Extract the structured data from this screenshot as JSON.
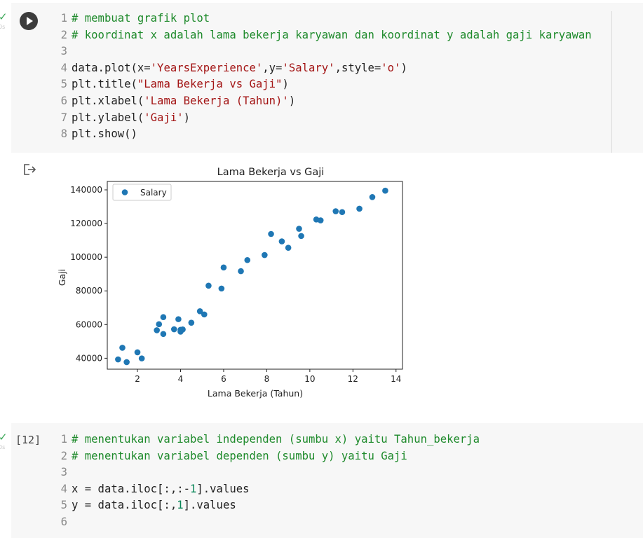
{
  "cells": [
    {
      "status": "✓",
      "time": "0s",
      "lines": [
        {
          "num": "1",
          "tokens": [
            {
              "t": "cm",
              "v": "# membuat grafik plot"
            }
          ]
        },
        {
          "num": "2",
          "tokens": [
            {
              "t": "cm",
              "v": "# koordinat x adalah lama bekerja karyawan dan koordinat y adalah gaji karyawan"
            }
          ]
        },
        {
          "num": "3",
          "tokens": []
        },
        {
          "num": "4",
          "tokens": [
            {
              "t": "pl",
              "v": "data.plot(x="
            },
            {
              "t": "st",
              "v": "'YearsExperience'"
            },
            {
              "t": "pl",
              "v": ",y="
            },
            {
              "t": "st",
              "v": "'Salary'"
            },
            {
              "t": "pl",
              "v": ",style="
            },
            {
              "t": "st",
              "v": "'o'"
            },
            {
              "t": "pl",
              "v": ")"
            }
          ]
        },
        {
          "num": "5",
          "tokens": [
            {
              "t": "pl",
              "v": "plt.title("
            },
            {
              "t": "st",
              "v": "\"Lama Bekerja vs Gaji\""
            },
            {
              "t": "pl",
              "v": ")"
            }
          ]
        },
        {
          "num": "6",
          "tokens": [
            {
              "t": "pl",
              "v": "plt.xlabel("
            },
            {
              "t": "st",
              "v": "'Lama Bekerja (Tahun)'"
            },
            {
              "t": "pl",
              "v": ")"
            }
          ]
        },
        {
          "num": "7",
          "tokens": [
            {
              "t": "pl",
              "v": "plt.ylabel("
            },
            {
              "t": "st",
              "v": "'Gaji'"
            },
            {
              "t": "pl",
              "v": ")"
            }
          ]
        },
        {
          "num": "8",
          "tokens": [
            {
              "t": "pl",
              "v": "plt.show()"
            }
          ]
        }
      ]
    },
    {
      "status": "✓",
      "time": "0s",
      "exec_count": "[12]",
      "lines": [
        {
          "num": "1",
          "tokens": [
            {
              "t": "cm",
              "v": "# menentukan variabel independen (sumbu x) yaitu Tahun_bekerja"
            }
          ]
        },
        {
          "num": "2",
          "tokens": [
            {
              "t": "cm",
              "v": "# menentukan variabel dependen (sumbu y) yaitu Gaji"
            }
          ]
        },
        {
          "num": "3",
          "tokens": []
        },
        {
          "num": "4",
          "tokens": [
            {
              "t": "pl",
              "v": "x = data.iloc[:,:-"
            },
            {
              "t": "nu",
              "v": "1"
            },
            {
              "t": "pl",
              "v": "].values"
            }
          ]
        },
        {
          "num": "5",
          "tokens": [
            {
              "t": "pl",
              "v": "y = data.iloc[:,"
            },
            {
              "t": "nu",
              "v": "1"
            },
            {
              "t": "pl",
              "v": "].values"
            }
          ]
        },
        {
          "num": "6",
          "tokens": []
        }
      ]
    }
  ],
  "chart_data": {
    "type": "scatter",
    "title": "Lama Bekerja vs Gaji",
    "xlabel": "Lama Bekerja (Tahun)",
    "ylabel": "Gaji",
    "xlim": [
      0.6,
      14.3
    ],
    "ylim": [
      33500,
      145000
    ],
    "xticks": [
      "2",
      "4",
      "6",
      "8",
      "10",
      "12",
      "14"
    ],
    "yticks": [
      "40000",
      "60000",
      "80000",
      "100000",
      "120000",
      "140000"
    ],
    "legend_position": "top-left",
    "grid": false,
    "series": [
      {
        "name": "Salary",
        "color": "#1f77b4",
        "points": [
          [
            1.1,
            39300
          ],
          [
            1.3,
            46200
          ],
          [
            1.5,
            37700
          ],
          [
            2.0,
            43500
          ],
          [
            2.2,
            39900
          ],
          [
            2.9,
            56600
          ],
          [
            3.0,
            60200
          ],
          [
            3.2,
            54400
          ],
          [
            3.2,
            64400
          ],
          [
            3.7,
            57200
          ],
          [
            3.9,
            63200
          ],
          [
            4.0,
            55800
          ],
          [
            4.0,
            56900
          ],
          [
            4.1,
            57100
          ],
          [
            4.5,
            61100
          ],
          [
            4.9,
            67900
          ],
          [
            5.1,
            66000
          ],
          [
            5.3,
            83100
          ],
          [
            5.9,
            81400
          ],
          [
            6.0,
            93900
          ],
          [
            6.8,
            91700
          ],
          [
            7.1,
            98300
          ],
          [
            7.9,
            101300
          ],
          [
            8.2,
            113800
          ],
          [
            8.7,
            109400
          ],
          [
            9.0,
            105600
          ],
          [
            9.5,
            116900
          ],
          [
            9.6,
            112600
          ],
          [
            10.3,
            122400
          ],
          [
            10.5,
            121900
          ],
          [
            11.2,
            127300
          ],
          [
            11.5,
            126800
          ],
          [
            12.3,
            128800
          ],
          [
            12.9,
            135700
          ],
          [
            13.5,
            139500
          ]
        ]
      }
    ]
  }
}
